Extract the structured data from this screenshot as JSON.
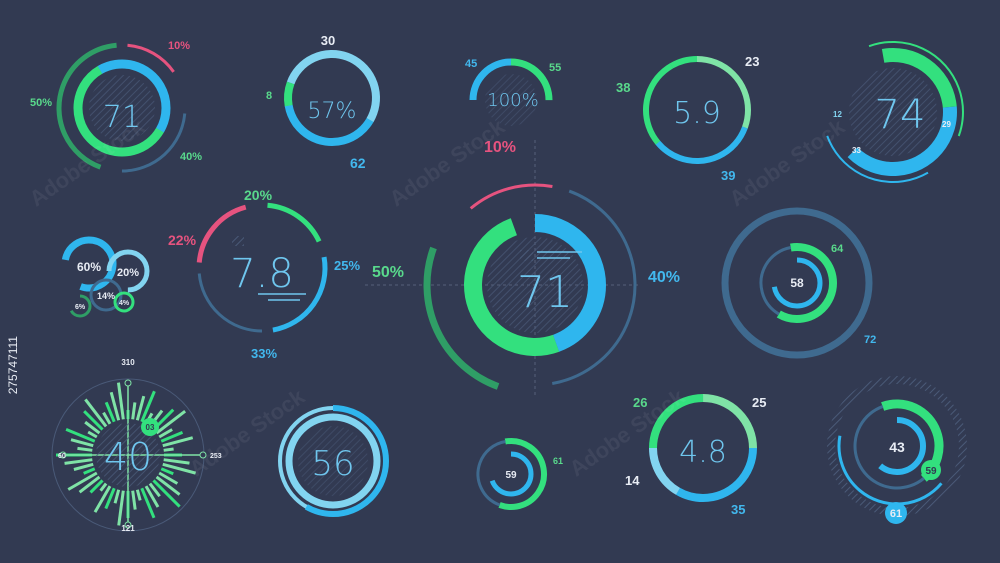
{
  "colors": {
    "background": "#323a52",
    "blue": "#2fb6ee",
    "lightblue": "#82d4f0",
    "green": "#33e07e",
    "palegreen": "#7fe3a6",
    "darkgreen": "#2f9e66",
    "pink": "#e6537f",
    "dimblue": "#3f6a8f",
    "label_green": "#59d98c",
    "label_blue": "#42b8ee",
    "text_blue": "#6fc6ee"
  },
  "watermark": {
    "text": "Adobe Stock",
    "id": "275747111"
  },
  "gauges": [
    {
      "id": "g1",
      "value": "71",
      "labels": [
        "10%",
        "50%",
        "40%"
      ]
    },
    {
      "id": "g2",
      "value": "57%",
      "labels": [
        "30",
        "8",
        "62"
      ]
    },
    {
      "id": "g3",
      "value": "100%",
      "labels": [
        "45",
        "55"
      ]
    },
    {
      "id": "g4",
      "value": "5.9",
      "labels": [
        "38",
        "23",
        "39"
      ]
    },
    {
      "id": "g5",
      "value": "74",
      "labels": [
        "12",
        "29",
        "33"
      ]
    },
    {
      "id": "g6",
      "value": "",
      "labels": [
        "60%",
        "20%",
        "14%",
        "6%",
        "4%"
      ]
    },
    {
      "id": "g7",
      "value": "7.8",
      "labels": [
        "20%",
        "22%",
        "25%",
        "33%"
      ]
    },
    {
      "id": "g8",
      "value": "71",
      "labels": [
        "10%",
        "50%",
        "40%"
      ]
    },
    {
      "id": "g9",
      "value": "58",
      "labels": [
        "64",
        "72"
      ]
    },
    {
      "id": "g10",
      "value": "40",
      "labels": [
        "310",
        "03",
        "60",
        "253",
        "121"
      ]
    },
    {
      "id": "g11",
      "value": "56",
      "labels": []
    },
    {
      "id": "g12",
      "value": "59",
      "labels": [
        "61"
      ]
    },
    {
      "id": "g13",
      "value": "4.8",
      "labels": [
        "26",
        "25",
        "14",
        "35"
      ]
    },
    {
      "id": "g14",
      "value": "43",
      "labels": [
        "59",
        "61"
      ]
    }
  ]
}
